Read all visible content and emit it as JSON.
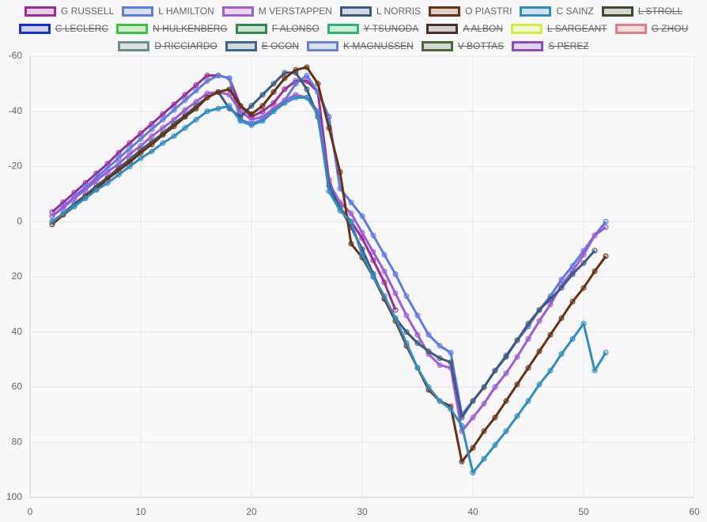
{
  "chart_data": {
    "type": "line",
    "x": [
      2,
      3,
      4,
      5,
      6,
      7,
      8,
      9,
      10,
      11,
      12,
      13,
      14,
      15,
      16,
      17,
      18,
      19,
      20,
      21,
      22,
      23,
      24,
      25,
      26,
      27,
      28,
      29,
      30,
      31,
      32,
      33,
      34,
      35,
      36,
      37,
      38,
      39,
      40,
      41,
      42,
      43,
      44,
      45,
      46,
      47,
      48,
      49,
      50,
      51,
      52
    ],
    "xlim": [
      0,
      60
    ],
    "xticks": [
      0,
      10,
      20,
      30,
      40,
      50,
      60
    ],
    "ylim": [
      100,
      -60
    ],
    "yticks": [
      -60,
      -40,
      -20,
      0,
      20,
      40,
      60,
      80,
      100
    ],
    "grid": true,
    "series": [
      {
        "name": "G RUSSELL",
        "color": "#9b2d9b",
        "values": [
          -3.5,
          -7,
          -10.5,
          -14,
          -17.5,
          -21,
          -25,
          -28.5,
          -32,
          -35.5,
          -39,
          -42.5,
          -46,
          -49.5,
          -53,
          -53,
          -52,
          -42,
          -38,
          -40,
          -43,
          -48,
          -51,
          -51,
          -47,
          -15,
          -5,
          0,
          6,
          14,
          22,
          32,
          null,
          null,
          null,
          null,
          null,
          null,
          null,
          null,
          null,
          null,
          null,
          null,
          null,
          null,
          null,
          null,
          null,
          null,
          null
        ]
      },
      {
        "name": "L HAMILTON",
        "color": "#5b7be8",
        "values": [
          -2,
          -5.5,
          -9,
          -12.5,
          -16,
          -19.5,
          -23,
          -26.5,
          -30,
          -33.5,
          -37,
          -40.5,
          -44,
          -47.5,
          -51,
          -53,
          -52,
          -37,
          -35.5,
          -37,
          -40.5,
          -44,
          -50,
          -53,
          -47,
          -38,
          -12,
          -7,
          -2,
          5,
          12,
          19,
          27,
          34,
          41,
          45,
          47.5,
          70,
          65,
          60,
          54,
          48.5,
          43,
          38,
          32,
          27,
          21,
          16,
          10.5,
          5,
          0
        ]
      },
      {
        "name": "M VERSTAPPEN",
        "color": "#a05cd8",
        "values": [
          -2,
          -5,
          -8.5,
          -11.5,
          -15,
          -18,
          -21,
          -24.5,
          -27.5,
          -31,
          -34,
          -37,
          -40.5,
          -43.5,
          -46.5,
          -47,
          -46,
          -40,
          -37,
          -38,
          -41,
          -44,
          -46,
          -45,
          -40,
          -14,
          -7,
          -3,
          4,
          11,
          18,
          26,
          34,
          41,
          48,
          52,
          53,
          76,
          71,
          66,
          60,
          55,
          49,
          42.5,
          36,
          30,
          23,
          18,
          12,
          5,
          2
        ]
      },
      {
        "name": "L NORRIS",
        "color": "#3d5a80",
        "values": [
          0,
          -3,
          -6.5,
          -9.5,
          -13,
          -16,
          -19.5,
          -22.5,
          -26,
          -29,
          -32,
          -35.5,
          -38.5,
          -42,
          -45,
          -47,
          -41,
          -38,
          -42,
          -46,
          -50,
          -54,
          -54,
          -48,
          -38,
          -13,
          -5,
          2,
          10,
          19,
          28,
          35,
          40,
          44,
          47,
          49.5,
          51,
          71,
          65,
          60,
          54,
          49,
          43,
          37,
          32,
          28,
          24,
          19,
          15,
          10.5,
          null
        ]
      },
      {
        "name": "O PIASTRI",
        "color": "#6b3010",
        "values": [
          1,
          -2.5,
          -5.5,
          -9,
          -12,
          -15.5,
          -18.5,
          -21.5,
          -25,
          -28,
          -31.5,
          -34.5,
          -38,
          -41,
          -45,
          -47,
          -48,
          -42,
          -39,
          -42,
          -47,
          -52,
          -55,
          -56,
          -50,
          -34,
          -18,
          8,
          13,
          20,
          28,
          36,
          45,
          53,
          61,
          65,
          67,
          87,
          82,
          76,
          71,
          65,
          59,
          53,
          47,
          41,
          35,
          29,
          24,
          18,
          12.5
        ]
      },
      {
        "name": "C SAINZ",
        "color": "#2e8ec4",
        "values": [
          0,
          -3,
          -5.5,
          -8.5,
          -11.5,
          -14,
          -17,
          -20,
          -23,
          -25.5,
          -28.5,
          -31,
          -34,
          -37,
          -40,
          -41,
          -42,
          -36.5,
          -35,
          -36.5,
          -40,
          -43,
          -45,
          -45,
          -39,
          -11,
          -4,
          0,
          12,
          20,
          27,
          35,
          44,
          53,
          60,
          65,
          68,
          74,
          91,
          86,
          81,
          76,
          70.5,
          65,
          59,
          54,
          48,
          42.5,
          37,
          54,
          47.5
        ]
      },
      {
        "name": "L STROLL",
        "color": "#3a4a2a",
        "hidden": true
      },
      {
        "name": "C LECLERC",
        "color": "#1a2fd0",
        "hidden": true
      },
      {
        "name": "N HULKENBERG",
        "color": "#3cc43c",
        "hidden": true
      },
      {
        "name": "F ALONSO",
        "color": "#2d8a4a",
        "hidden": true
      },
      {
        "name": "Y TSUNODA",
        "color": "#2ab56a",
        "hidden": true
      },
      {
        "name": "A ALBON",
        "color": "#4a2e28",
        "hidden": true
      },
      {
        "name": "L SARGEANT",
        "color": "#d4ec3c",
        "hidden": true
      },
      {
        "name": "G ZHOU",
        "color": "#e87c84",
        "hidden": true
      },
      {
        "name": "D RICCIARDO",
        "color": "#6a8e88",
        "hidden": true
      },
      {
        "name": "E OCON",
        "color": "#3a6a88",
        "hidden": true
      },
      {
        "name": "K MAGNUSSEN",
        "color": "#6a80d8",
        "hidden": true
      },
      {
        "name": "V BOTTAS",
        "color": "#4a6a3a",
        "hidden": true
      },
      {
        "name": "S PEREZ",
        "color": "#8a4ac4",
        "hidden": true
      }
    ]
  }
}
